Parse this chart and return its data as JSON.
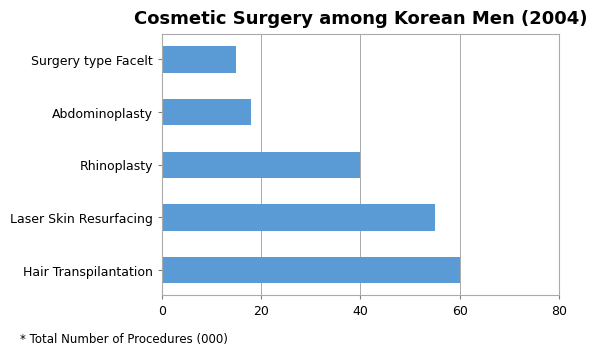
{
  "title": "Cosmetic Surgery among Korean Men (2004)",
  "categories": [
    "Hair Transpilantation",
    "Laser Skin Resurfacing",
    "Rhinoplasty",
    "Abdominoplasty",
    "Surgery type Facelt"
  ],
  "values": [
    60,
    55,
    40,
    18,
    15
  ],
  "bar_color": "#5b9bd5",
  "xlim": [
    0,
    80
  ],
  "xticks": [
    0,
    20,
    40,
    60,
    80
  ],
  "footnote": "* Total Number of Procedures (000)",
  "background_color": "#ffffff",
  "title_fontsize": 13,
  "label_fontsize": 9,
  "tick_fontsize": 9,
  "footnote_fontsize": 8.5
}
